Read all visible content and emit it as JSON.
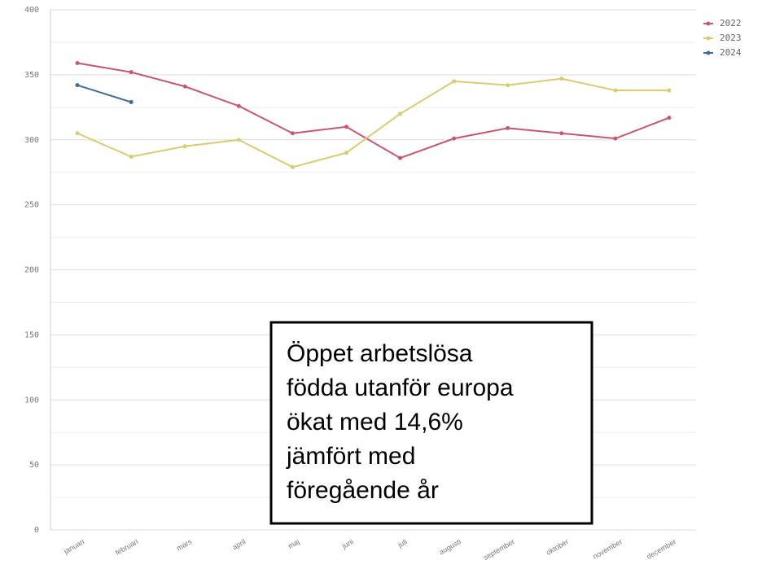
{
  "chart_data": {
    "type": "line",
    "categories": [
      "januari",
      "februari",
      "mars",
      "april",
      "maj",
      "juni",
      "juli",
      "augusti",
      "september",
      "oktober",
      "november",
      "december"
    ],
    "series": [
      {
        "name": "2022",
        "color": "#c9566f",
        "values": [
          359,
          352,
          341,
          326,
          305,
          310,
          286,
          301,
          309,
          305,
          301,
          317
        ]
      },
      {
        "name": "2023",
        "color": "#dccb6e",
        "values": [
          305,
          287,
          295,
          300,
          279,
          290,
          320,
          345,
          342,
          347,
          338,
          338
        ]
      },
      {
        "name": "2024",
        "color": "#3f6a9c",
        "values": [
          342,
          329,
          null,
          null,
          null,
          null,
          null,
          null,
          null,
          null,
          null,
          null
        ]
      }
    ],
    "ylim": [
      0,
      400
    ],
    "yticks": [
      0,
      50,
      100,
      150,
      200,
      250,
      300,
      350,
      400
    ],
    "minor_yticks": [
      25,
      75,
      125,
      175,
      225,
      275,
      325,
      375
    ],
    "grid": true,
    "legend": "top-right",
    "annotation": [
      "Öppet arbetslösa",
      "födda utanför europa",
      "ökat med 14,6%",
      "jämfört med",
      "föregående år"
    ]
  }
}
